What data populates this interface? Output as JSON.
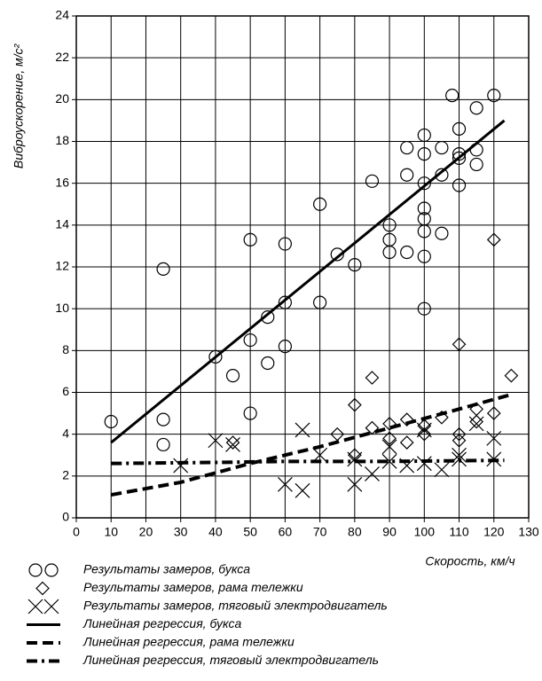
{
  "chart_data": {
    "type": "scatter",
    "xlabel": "Скорость, км/ч",
    "ylabel": "Виброускорение, м/с²",
    "xlim": [
      0,
      130
    ],
    "ylim": [
      0,
      24
    ],
    "xticks": [
      0,
      10,
      20,
      30,
      40,
      50,
      60,
      70,
      80,
      90,
      100,
      110,
      120,
      130
    ],
    "yticks": [
      0,
      2,
      4,
      6,
      8,
      10,
      12,
      14,
      16,
      18,
      20,
      22,
      24
    ],
    "grid": true,
    "series": [
      {
        "name": "Результаты замеров, букса",
        "type": "scatter",
        "marker": "circle",
        "color": "#000000",
        "x": [
          10,
          25,
          25,
          25,
          40,
          45,
          50,
          50,
          50,
          55,
          55,
          60,
          60,
          60,
          70,
          70,
          75,
          80,
          85,
          90,
          90,
          90,
          95,
          95,
          95,
          100,
          100,
          100,
          100,
          100,
          100,
          100,
          100,
          105,
          105,
          105,
          108,
          110,
          110,
          110,
          110,
          115,
          115,
          115,
          120
        ],
        "y": [
          4.6,
          11.9,
          4.7,
          3.5,
          7.7,
          6.8,
          13.3,
          8.5,
          5.0,
          9.6,
          7.4,
          13.1,
          10.3,
          8.2,
          15.0,
          10.3,
          12.6,
          12.1,
          16.1,
          14.0,
          13.3,
          12.7,
          17.7,
          16.4,
          12.7,
          18.3,
          17.4,
          16.0,
          14.8,
          14.3,
          13.7,
          12.5,
          10.0,
          17.7,
          16.4,
          13.6,
          20.2,
          18.6,
          17.4,
          17.2,
          15.9,
          19.6,
          17.6,
          16.9,
          20.2
        ]
      },
      {
        "name": "Результаты замеров, рама тележки",
        "type": "scatter",
        "marker": "diamond",
        "color": "#000000",
        "x": [
          45,
          75,
          80,
          80,
          85,
          85,
          90,
          90,
          95,
          95,
          100,
          100,
          105,
          110,
          110,
          110,
          115,
          115,
          120,
          120,
          125
        ],
        "y": [
          3.6,
          4.0,
          5.4,
          3.0,
          6.7,
          4.3,
          4.5,
          3.8,
          4.7,
          3.6,
          4.4,
          4.0,
          4.8,
          8.3,
          4.0,
          3.7,
          5.2,
          4.6,
          13.3,
          5.0,
          6.8
        ]
      },
      {
        "name": "Результаты замеров, тяговый электродвигатель",
        "type": "scatter",
        "marker": "x",
        "color": "#000000",
        "x": [
          30,
          40,
          45,
          60,
          65,
          65,
          70,
          80,
          80,
          85,
          90,
          90,
          95,
          100,
          100,
          105,
          110,
          110,
          115,
          120,
          120
        ],
        "y": [
          2.5,
          3.7,
          3.5,
          1.6,
          1.3,
          4.2,
          3.0,
          2.8,
          1.6,
          2.1,
          3.4,
          2.7,
          2.5,
          4.2,
          2.6,
          2.3,
          3.0,
          2.8,
          4.5,
          3.8,
          2.8
        ]
      },
      {
        "name": "Линейная регрессия, букса",
        "type": "line",
        "dash": "solid",
        "color": "#000000",
        "x": [
          10,
          123
        ],
        "y": [
          3.6,
          19.0
        ]
      },
      {
        "name": "Линейная регрессия, рама тележки",
        "type": "line",
        "dash": "dashed",
        "color": "#000000",
        "x": [
          10,
          30,
          50,
          70,
          90,
          110,
          125
        ],
        "y": [
          1.1,
          1.7,
          2.6,
          3.4,
          4.3,
          5.2,
          5.9
        ]
      },
      {
        "name": "Линейная регрессия, тяговый электродвигатель",
        "type": "line",
        "dash": "dashdot",
        "color": "#000000",
        "x": [
          10,
          40,
          60,
          90,
          123
        ],
        "y": [
          2.6,
          2.65,
          2.7,
          2.7,
          2.75
        ]
      }
    ]
  }
}
